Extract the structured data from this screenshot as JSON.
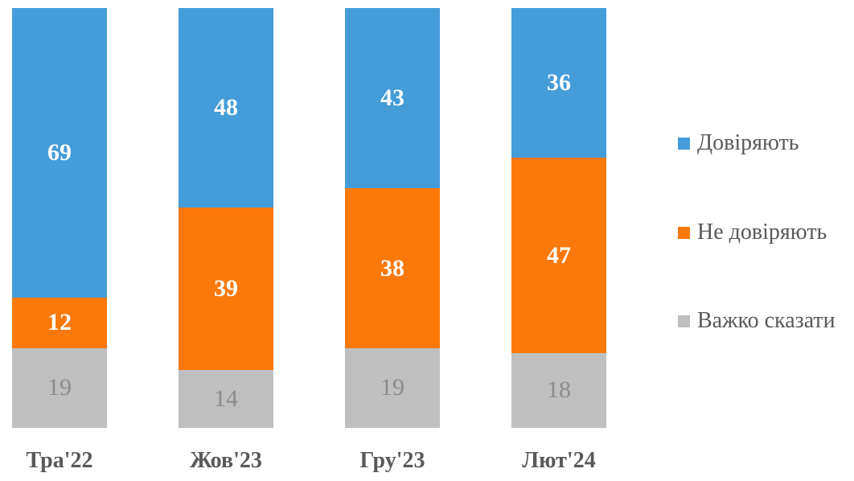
{
  "chart_data": {
    "type": "bar",
    "subtype": "stacked-column",
    "title": "",
    "xlabel": "",
    "ylabel": "",
    "grid": false,
    "legend_position": "right",
    "background": "#ffffff",
    "axis_label_color": "#595959",
    "categories": [
      "Тра'22",
      "Жов'23",
      "Гру'23",
      "Лют'24"
    ],
    "series": [
      {
        "name": "Довіряють",
        "color": "#449cd8",
        "label_color": "#ffffff",
        "values": [
          69,
          48,
          43,
          36
        ]
      },
      {
        "name": "Не довіряють",
        "color": "#fb790b",
        "label_color": "#ffffff",
        "values": [
          12,
          39,
          38,
          47
        ]
      },
      {
        "name": "Важко сказати",
        "color": "#bfbfbf",
        "label_color": "#8c8c8c",
        "values": [
          19,
          14,
          19,
          18
        ]
      }
    ]
  },
  "legend": {
    "items": [
      {
        "label": "Довіряють",
        "color": "#449cd8"
      },
      {
        "label": "Не довіряють",
        "color": "#fb790b"
      },
      {
        "label": "Важко сказати",
        "color": "#bfbfbf"
      }
    ]
  }
}
